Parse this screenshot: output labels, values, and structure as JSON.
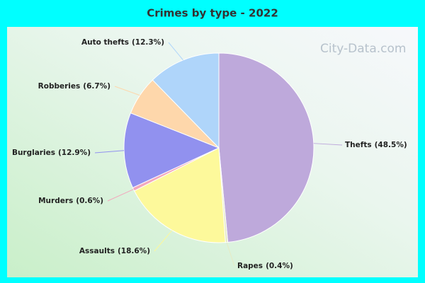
{
  "chart_data": {
    "type": "pie",
    "title": "Crimes by type - 2022",
    "watermark": "City-Data.com",
    "categories": [
      "Thefts",
      "Rapes",
      "Assaults",
      "Murders",
      "Burglaries",
      "Robberies",
      "Auto thefts"
    ],
    "values": [
      48.5,
      0.4,
      18.6,
      0.6,
      12.9,
      6.7,
      12.3
    ],
    "value_labels": [
      "(48.5%)",
      "(0.4%)",
      "(18.6%)",
      "(0.6%)",
      "(12.9%)",
      "(6.7%)",
      "(12.3%)"
    ],
    "colors": [
      "#bea9db",
      "#e6ebc4",
      "#fdf99b",
      "#f2a8bd",
      "#9191ef",
      "#fed7ab",
      "#afd5fa"
    ]
  }
}
